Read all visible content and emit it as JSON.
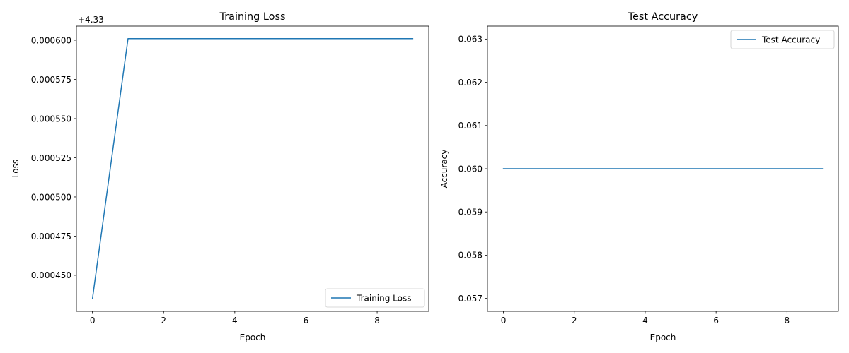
{
  "chart_data": [
    {
      "type": "line",
      "title": "Training Loss",
      "xlabel": "Epoch",
      "ylabel": "Loss",
      "offset_label": "+4.33",
      "offset": 4.33,
      "xlim": [
        -0.45,
        9.45
      ],
      "ylim": [
        0.000427,
        0.000609
      ],
      "xticks": [
        0,
        2,
        4,
        6,
        8
      ],
      "xtick_labels": [
        "0",
        "2",
        "4",
        "6",
        "8"
      ],
      "yticks": [
        0.00045,
        0.000475,
        0.0005,
        0.000525,
        0.00055,
        0.000575,
        0.0006
      ],
      "ytick_labels": [
        "0.000450",
        "0.000475",
        "0.000500",
        "0.000525",
        "0.000550",
        "0.000575",
        "0.000600"
      ],
      "grid": false,
      "legend": "lower right",
      "series": [
        {
          "name": "Training Loss",
          "color": "#1f77b4",
          "x": [
            0,
            1,
            2,
            3,
            4,
            5,
            6,
            7,
            8,
            9
          ],
          "y": [
            0.000435,
            0.000601,
            0.000601,
            0.000601,
            0.000601,
            0.000601,
            0.000601,
            0.000601,
            0.000601,
            0.000601
          ]
        }
      ]
    },
    {
      "type": "line",
      "title": "Test Accuracy",
      "xlabel": "Epoch",
      "ylabel": "Accuracy",
      "xlim": [
        -0.45,
        9.45
      ],
      "ylim": [
        0.0567,
        0.0633
      ],
      "xticks": [
        0,
        2,
        4,
        6,
        8
      ],
      "xtick_labels": [
        "0",
        "2",
        "4",
        "6",
        "8"
      ],
      "yticks": [
        0.057,
        0.058,
        0.059,
        0.06,
        0.061,
        0.062,
        0.063
      ],
      "ytick_labels": [
        "0.057",
        "0.058",
        "0.059",
        "0.060",
        "0.061",
        "0.062",
        "0.063"
      ],
      "grid": false,
      "legend": "upper right",
      "series": [
        {
          "name": "Test Accuracy",
          "color": "#1f77b4",
          "x": [
            0,
            1,
            2,
            3,
            4,
            5,
            6,
            7,
            8,
            9
          ],
          "y": [
            0.06,
            0.06,
            0.06,
            0.06,
            0.06,
            0.06,
            0.06,
            0.06,
            0.06,
            0.06
          ]
        }
      ]
    }
  ]
}
